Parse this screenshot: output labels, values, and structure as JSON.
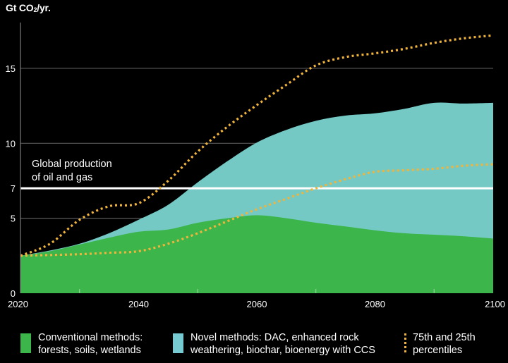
{
  "chart_data": {
    "type": "area",
    "title": "",
    "ylabel_main": "Gt CO",
    "ylabel_sub": "2",
    "ylabel_tail": "/yr.",
    "xlabel": "",
    "x": [
      2020,
      2025,
      2030,
      2035,
      2040,
      2045,
      2050,
      2055,
      2060,
      2065,
      2070,
      2075,
      2080,
      2085,
      2090,
      2095,
      2100
    ],
    "xlim": [
      2020,
      2100
    ],
    "ylim": [
      0,
      18
    ],
    "x_ticks": [
      "2020",
      "2040",
      "2060",
      "2080",
      "2100"
    ],
    "x_minor_ticks": [
      2030,
      2050,
      2070,
      2090
    ],
    "y_ticks": [
      0,
      5,
      7,
      10,
      15
    ],
    "y_tick_labels": [
      "0",
      "5",
      "7",
      "10",
      "15"
    ],
    "gridlines_y": [
      5,
      10,
      15
    ],
    "series": [
      {
        "name": "Conventional methods: forests, soils, wetlands",
        "kind": "stacked-area",
        "color": "#3cb54a",
        "values": [
          2.5,
          2.8,
          3.25,
          3.7,
          4.1,
          4.25,
          4.7,
          5.0,
          5.2,
          5.0,
          4.7,
          4.45,
          4.2,
          4.0,
          3.9,
          3.8,
          3.65
        ]
      },
      {
        "name": "Novel methods: DAC, enhanced rock weathering, biochar, bioenergy with CCS",
        "kind": "stacked-area-top",
        "color": "#74c9c4",
        "top_values": [
          2.5,
          2.85,
          3.3,
          4.0,
          4.9,
          5.9,
          7.4,
          8.8,
          10.05,
          10.9,
          11.5,
          11.85,
          12.0,
          12.3,
          12.7,
          12.65,
          12.7
        ]
      },
      {
        "name": "75th percentile",
        "kind": "dotted-line",
        "color": "#f0b43c",
        "values": [
          2.5,
          3.3,
          4.9,
          5.8,
          6.0,
          7.5,
          9.45,
          11.1,
          12.55,
          13.9,
          15.2,
          15.75,
          16.0,
          16.3,
          16.7,
          17.0,
          17.2
        ]
      },
      {
        "name": "25th percentile",
        "kind": "dotted-line",
        "color": "#f0b43c",
        "values": [
          2.5,
          2.55,
          2.6,
          2.7,
          2.8,
          3.3,
          4.0,
          4.8,
          5.6,
          6.3,
          7.0,
          7.6,
          8.1,
          8.2,
          8.3,
          8.5,
          8.6
        ]
      }
    ],
    "reference_line": {
      "value": 7,
      "label_line1": "Global production",
      "label_line2": "of oil and gas",
      "color": "#ffffff"
    },
    "legend": {
      "position": "bottom",
      "entries": [
        {
          "line1": "Conventional methods:",
          "line2": "forests, soils, wetlands",
          "color": "#3cb54a",
          "kind": "swatch"
        },
        {
          "line1": "Novel methods: DAC, enhanced rock",
          "line2": "weathering, biochar, bioenergy with CCS",
          "color": "#76cbd3",
          "kind": "swatch"
        },
        {
          "line1": "75th and 25th",
          "line2": "percentiles",
          "color": "#f0b43c",
          "kind": "dotted"
        }
      ]
    },
    "grid": true
  }
}
